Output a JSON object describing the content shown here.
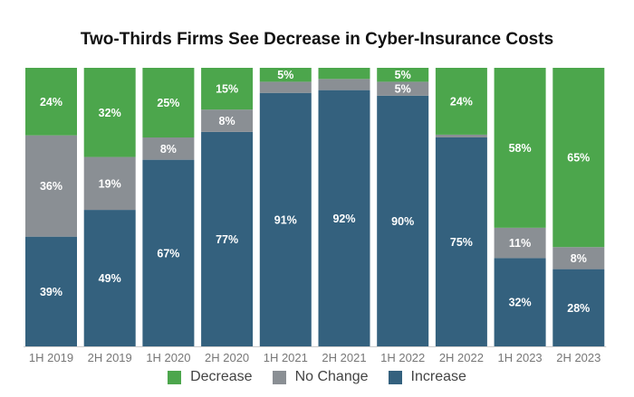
{
  "chart_data": {
    "type": "bar",
    "stacked": true,
    "title": "Two-Thirds Firms See Decrease in Cyber-Insurance Costs",
    "categories": [
      "1H 2019",
      "2H 2019",
      "1H 2020",
      "2H 2020",
      "1H 2021",
      "2H 2021",
      "1H 2022",
      "2H 2022",
      "1H 2023",
      "2H 2023"
    ],
    "series": [
      {
        "name": "Increase",
        "color": "#34617e",
        "values": [
          39,
          49,
          67,
          77,
          91,
          92,
          90,
          75,
          32,
          28
        ],
        "labels": [
          "39%",
          "49%",
          "67%",
          "77%",
          "91%",
          "92%",
          "90%",
          "75%",
          "32%",
          "28%"
        ]
      },
      {
        "name": "No Change",
        "color": "#8a8f94",
        "values": [
          36,
          19,
          8,
          8,
          4,
          4,
          5,
          1,
          11,
          8
        ],
        "labels": [
          "36%",
          "19%",
          "8%",
          "8%",
          "",
          "",
          "5%",
          "",
          "11%",
          "8%"
        ]
      },
      {
        "name": "Decrease",
        "color": "#4ca64c",
        "values": [
          24,
          32,
          25,
          15,
          5,
          4,
          5,
          24,
          58,
          65
        ],
        "labels": [
          "24%",
          "32%",
          "25%",
          "15%",
          "5%",
          "",
          "5%",
          "24%",
          "58%",
          "65%"
        ]
      }
    ],
    "legend_order": [
      "Decrease",
      "No Change",
      "Increase"
    ],
    "legend_position": "bottom",
    "grid": false,
    "ylim": [
      0,
      100
    ]
  }
}
